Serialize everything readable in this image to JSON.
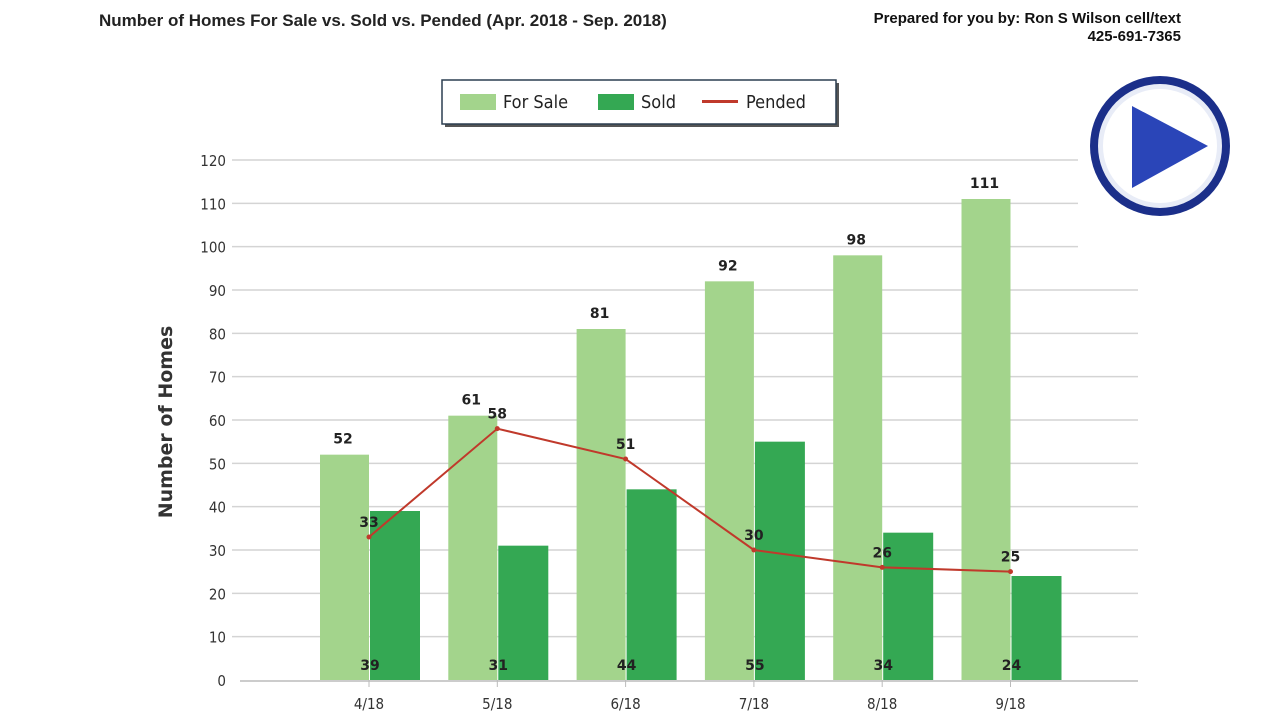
{
  "header": {
    "title": "Number of Homes For Sale vs. Sold vs. Pended (Apr. 2018 - Sep. 2018)",
    "prepared_by": "Prepared for you by: Ron S Wilson cell/text",
    "phone": "425-691-7365"
  },
  "play_button": {
    "icon": "play-icon",
    "color": "#1f3fae"
  },
  "chart_data": {
    "type": "bar",
    "title": "",
    "xlabel": "",
    "ylabel": "Number of Homes",
    "ylim": [
      0,
      120
    ],
    "yticks": [
      0,
      10,
      20,
      30,
      40,
      50,
      60,
      70,
      80,
      90,
      100,
      110,
      120
    ],
    "grid": true,
    "legend": "top-center",
    "categories": [
      "4/18",
      "5/18",
      "6/18",
      "7/18",
      "8/18",
      "9/18"
    ],
    "series": [
      {
        "name": "For Sale",
        "type": "bar",
        "color": "#a3d48c",
        "values": [
          52,
          61,
          81,
          92,
          98,
          111
        ]
      },
      {
        "name": "Sold",
        "type": "bar",
        "color": "#34a853",
        "values": [
          39,
          31,
          44,
          55,
          34,
          24
        ]
      },
      {
        "name": "Pended",
        "type": "line",
        "color": "#c0392b",
        "values": [
          33,
          58,
          51,
          30,
          26,
          25
        ]
      }
    ]
  }
}
